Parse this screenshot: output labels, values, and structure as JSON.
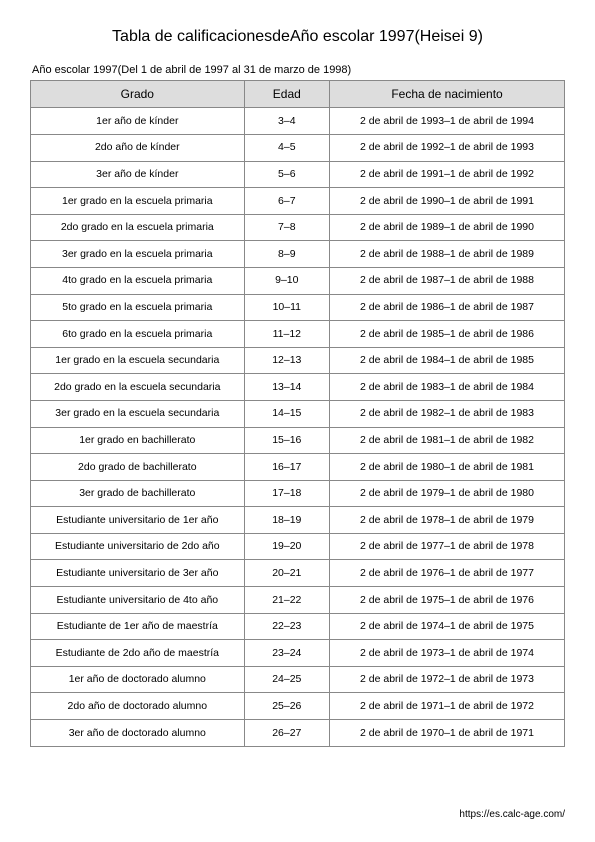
{
  "title": "Tabla de calificacionesdeAño escolar 1997(Heisei 9)",
  "subtitle": "Año escolar 1997(Del 1 de abril de 1997 al 31 de marzo de 1998)",
  "columns": [
    "Grado",
    "Edad",
    "Fecha de nacimiento"
  ],
  "rows": [
    [
      "1er año de kínder",
      "3–4",
      "2 de abril de 1993–1 de abril de 1994"
    ],
    [
      "2do año de kínder",
      "4–5",
      "2 de abril de 1992–1 de abril de 1993"
    ],
    [
      "3er año de kínder",
      "5–6",
      "2 de abril de 1991–1 de abril de 1992"
    ],
    [
      "1er grado en la escuela primaria",
      "6–7",
      "2 de abril de 1990–1 de abril de 1991"
    ],
    [
      "2do grado en la escuela primaria",
      "7–8",
      "2 de abril de 1989–1 de abril de 1990"
    ],
    [
      "3er grado en la escuela primaria",
      "8–9",
      "2 de abril de 1988–1 de abril de 1989"
    ],
    [
      "4to grado en la escuela primaria",
      "9–10",
      "2 de abril de 1987–1 de abril de 1988"
    ],
    [
      "5to grado en la escuela primaria",
      "10–11",
      "2 de abril de 1986–1 de abril de 1987"
    ],
    [
      "6to grado en la escuela primaria",
      "11–12",
      "2 de abril de 1985–1 de abril de 1986"
    ],
    [
      "1er grado en la escuela secundaria",
      "12–13",
      "2 de abril de 1984–1 de abril de 1985"
    ],
    [
      "2do grado en la escuela secundaria",
      "13–14",
      "2 de abril de 1983–1 de abril de 1984"
    ],
    [
      "3er grado en la escuela secundaria",
      "14–15",
      "2 de abril de 1982–1 de abril de 1983"
    ],
    [
      "1er grado en bachillerato",
      "15–16",
      "2 de abril de 1981–1 de abril de 1982"
    ],
    [
      "2do grado de bachillerato",
      "16–17",
      "2 de abril de 1980–1 de abril de 1981"
    ],
    [
      "3er grado de bachillerato",
      "17–18",
      "2 de abril de 1979–1 de abril de 1980"
    ],
    [
      "Estudiante universitario de 1er año",
      "18–19",
      "2 de abril de 1978–1 de abril de 1979"
    ],
    [
      "Estudiante universitario de 2do año",
      "19–20",
      "2 de abril de 1977–1 de abril de 1978"
    ],
    [
      "Estudiante universitario de 3er año",
      "20–21",
      "2 de abril de 1976–1 de abril de 1977"
    ],
    [
      "Estudiante universitario de 4to año",
      "21–22",
      "2 de abril de 1975–1 de abril de 1976"
    ],
    [
      "Estudiante de 1er año de maestría",
      "22–23",
      "2 de abril de 1974–1 de abril de 1975"
    ],
    [
      "Estudiante de 2do año de maestría",
      "23–24",
      "2 de abril de 1973–1 de abril de 1974"
    ],
    [
      "1er año de doctorado alumno",
      "24–25",
      "2 de abril de 1972–1 de abril de 1973"
    ],
    [
      "2do año de doctorado alumno",
      "25–26",
      "2 de abril de 1971–1 de abril de 1972"
    ],
    [
      "3er año de doctorado alumno",
      "26–27",
      "2 de abril de 1970–1 de abril de 1971"
    ]
  ],
  "footer": "https://es.calc-age.com/"
}
